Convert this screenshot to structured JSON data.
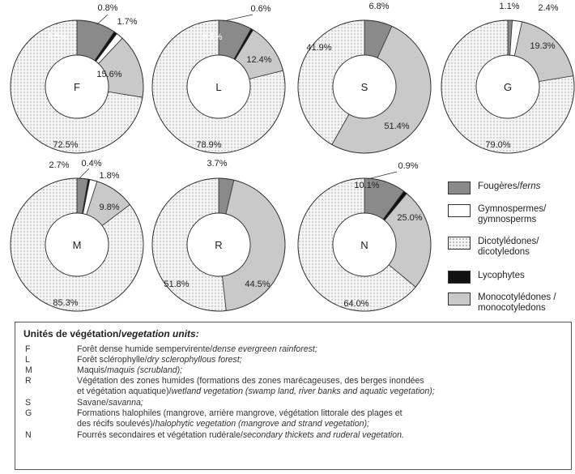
{
  "chart_data": [
    {
      "type": "pie",
      "center_label": "F",
      "slices": [
        {
          "category": "Fougères/ferns",
          "value": 9.5
        },
        {
          "category": "Lycophytes",
          "value": 0.8
        },
        {
          "category": "Gymnospermes/gymnosperms",
          "value": 1.7
        },
        {
          "category": "Monocotylédones/monocotyledons",
          "value": 15.6
        },
        {
          "category": "Dicotylédones/dicotyledons",
          "value": 72.5
        }
      ],
      "labels": [
        "9.5%",
        "0.8%",
        "1.7%",
        "15.6%",
        "72.5%"
      ]
    },
    {
      "type": "pie",
      "center_label": "L",
      "slices": [
        {
          "category": "Fougères/ferns",
          "value": 8.1
        },
        {
          "category": "Lycophytes",
          "value": 0.6
        },
        {
          "category": "Monocotylédones/monocotyledons",
          "value": 12.4
        },
        {
          "category": "Dicotylédones/dicotyledons",
          "value": 78.9
        }
      ],
      "labels": [
        "8.1%",
        "0.6%",
        "12.4%",
        "78.9%"
      ]
    },
    {
      "type": "pie",
      "center_label": "S",
      "slices": [
        {
          "category": "Fougères/ferns",
          "value": 6.8
        },
        {
          "category": "Monocotylédones/monocotyledons",
          "value": 51.4
        },
        {
          "category": "Dicotylédones/dicotyledons",
          "value": 41.9
        }
      ],
      "labels": [
        "6.8%",
        "51.4%",
        "41.9%"
      ]
    },
    {
      "type": "pie",
      "center_label": "G",
      "slices": [
        {
          "category": "Fougères/ferns",
          "value": 1.1
        },
        {
          "category": "Gymnospermes/gymnosperms",
          "value": 2.4
        },
        {
          "category": "Monocotylédones/monocotyledons",
          "value": 19.3
        },
        {
          "category": "Dicotylédones/dicotyledons",
          "value": 79.0
        }
      ],
      "labels": [
        "1.1%",
        "2.4%",
        "19.3%",
        "79.0%"
      ]
    },
    {
      "type": "pie",
      "center_label": "M",
      "slices": [
        {
          "category": "Fougères/ferns",
          "value": 2.7
        },
        {
          "category": "Lycophytes",
          "value": 0.4
        },
        {
          "category": "Gymnospermes/gymnosperms",
          "value": 1.8
        },
        {
          "category": "Monocotylédones/monocotyledons",
          "value": 9.8
        },
        {
          "category": "Dicotylédones/dicotyledons",
          "value": 85.3
        }
      ],
      "labels": [
        "2.7%",
        "0.4%",
        "1.8%",
        "9.8%",
        "85.3%"
      ]
    },
    {
      "type": "pie",
      "center_label": "R",
      "slices": [
        {
          "category": "Fougères/ferns",
          "value": 3.7
        },
        {
          "category": "Monocotylédones/monocotyledons",
          "value": 44.5
        },
        {
          "category": "Dicotylédones/dicotyledons",
          "value": 51.8
        }
      ],
      "labels": [
        "3.7%",
        "44.5%",
        "51.8%"
      ]
    },
    {
      "type": "pie",
      "center_label": "N",
      "slices": [
        {
          "category": "Fougères/ferns",
          "value": 10.1
        },
        {
          "category": "Lycophytes",
          "value": 0.9
        },
        {
          "category": "Monocotylédones/monocotyledons",
          "value": 25.0
        },
        {
          "category": "Dicotylédones/dicotyledons",
          "value": 64.0
        }
      ],
      "labels": [
        "10.1%",
        "0.9%",
        "25.0%",
        "64.0%"
      ]
    }
  ],
  "colors": {
    "Fougères/ferns": "#8a8a8a",
    "Gymnospermes/gymnosperms": "#ffffff",
    "Dicotylédones/dicotyledons": "dotted",
    "Lycophytes": "#111111",
    "Monocotylédones/monocotyledons": "#c9c9c9"
  },
  "legend": {
    "items": [
      {
        "swatch": "ferns",
        "line1": "Fougères/",
        "line1_italic": "ferns",
        "line2": ""
      },
      {
        "swatch": "gymno",
        "line1": "Gymnospermes/",
        "line1_italic": "",
        "line2": "gymnosperms"
      },
      {
        "swatch": "dicot",
        "line1": "Dicotylédones/",
        "line1_italic": "",
        "line2": "dicotyledons"
      },
      {
        "swatch": "lyco",
        "line1": "Lycophytes",
        "line1_italic": "",
        "line2": ""
      },
      {
        "swatch": "mono",
        "line1": "Monocotylédones /",
        "line1_italic": "",
        "line2": "monocotyledons"
      }
    ]
  },
  "units": {
    "heading": "Unités de végétation/",
    "heading_italic": "vegetation units:",
    "rows": [
      {
        "code": "F",
        "desc": "Forêt dense humide sempervirente/",
        "desc_italic": "dense evergreen rainforest;",
        "desc2": "",
        "desc2_italic": ""
      },
      {
        "code": "L",
        "desc": "Forêt sclérophylle/",
        "desc_italic": "dry sclerophyllous forest;",
        "desc2": "",
        "desc2_italic": ""
      },
      {
        "code": "M",
        "desc": "Maquis/",
        "desc_italic": "maquis (scrubland);",
        "desc2": "",
        "desc2_italic": ""
      },
      {
        "code": "R",
        "desc": "Végétation des zones humides (formations des zones marécageuses, des berges inondées",
        "desc_italic": "",
        "desc2": "et végétation aquatique)/",
        "desc2_italic": "wetland vegetation (swamp land, river banks and aquatic vegetation);"
      },
      {
        "code": "S",
        "desc": "Savane/",
        "desc_italic": "savanna;",
        "desc2": "",
        "desc2_italic": ""
      },
      {
        "code": "G",
        "desc": "Formations halophiles (mangrove, arrière mangrove, végétation littorale des plages et",
        "desc_italic": "",
        "desc2": "des récifs soulevés)/",
        "desc2_italic": "halophytic vegetation (mangrove and strand vegetation);"
      },
      {
        "code": "N",
        "desc": "Fourrés secondaires et végétation rudérale/",
        "desc_italic": "secondary thickets and ruderal vegetation.",
        "desc2": "",
        "desc2_italic": ""
      }
    ]
  }
}
